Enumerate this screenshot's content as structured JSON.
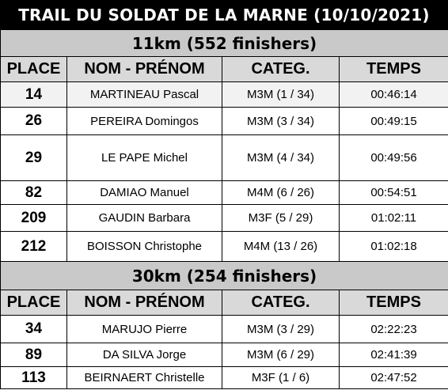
{
  "title": "TRAIL DU SOLDAT DE LA MARNE (10/10/2021)",
  "columns": {
    "place": "PLACE",
    "name": "NOM - PRÉNOM",
    "category": "CATEG.",
    "time": "TEMPS"
  },
  "races": [
    {
      "heading": "11km (552 finishers)",
      "rows": [
        {
          "place": "14",
          "name": "MARTINEAU Pascal",
          "category": "M3M (1 / 34)",
          "time": "00:46:14"
        },
        {
          "place": "26",
          "name": "PEREIRA Domingos",
          "category": "M3M (3 / 34)",
          "time": "00:49:15"
        },
        {
          "place": "29",
          "name": "LE PAPE Michel",
          "category": "M3M (4 / 34)",
          "time": "00:49:56"
        },
        {
          "place": "82",
          "name": "DAMIAO Manuel",
          "category": "M4M (6 / 26)",
          "time": "00:54:51"
        },
        {
          "place": "209",
          "name": "GAUDIN Barbara",
          "category": "M3F (5 / 29)",
          "time": "01:02:11"
        },
        {
          "place": "212",
          "name": "BOISSON Christophe",
          "category": "M4M (13 / 26)",
          "time": "01:02:18"
        }
      ]
    },
    {
      "heading": "30km (254 finishers)",
      "rows": [
        {
          "place": "34",
          "name": "MARUJO Pierre",
          "category": "M3M (3 / 29)",
          "time": "02:22:23"
        },
        {
          "place": "89",
          "name": "DA SILVA Jorge",
          "category": "M3M (6 / 29)",
          "time": "02:41:39"
        },
        {
          "place": "113",
          "name": "BEIRNAERT Christelle",
          "category": "M3F (1 / 6)",
          "time": "02:47:52"
        }
      ]
    }
  ]
}
